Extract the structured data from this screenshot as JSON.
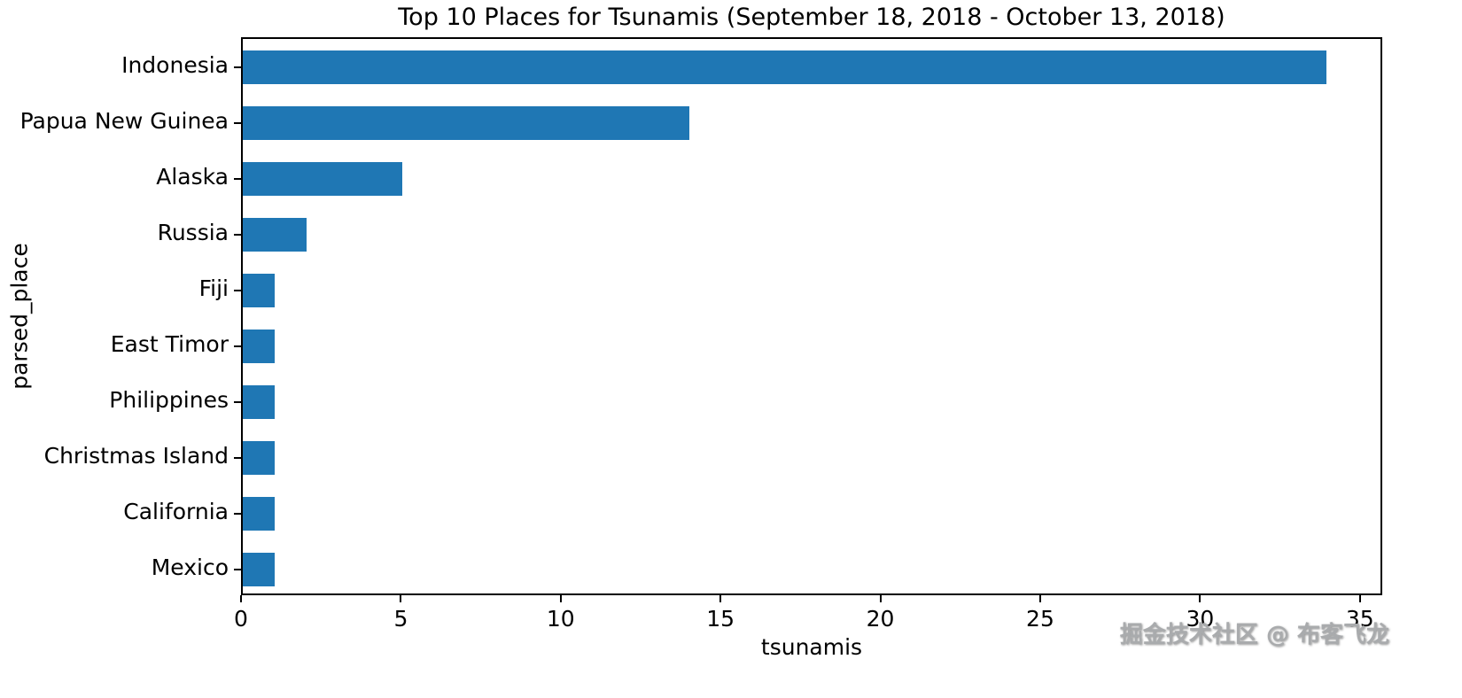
{
  "chart_data": {
    "type": "bar",
    "orientation": "horizontal",
    "title": "Top 10 Places for Tsunamis (September 18, 2018 - October 13, 2018)",
    "xlabel": "tsunamis",
    "ylabel": "parsed_place",
    "categories": [
      "Indonesia",
      "Papua New Guinea",
      "Alaska",
      "Russia",
      "Fiji",
      "East Timor",
      "Philippines",
      "Christmas Island",
      "California",
      "Mexico"
    ],
    "values": [
      34,
      14,
      5,
      2,
      1,
      1,
      1,
      1,
      1,
      1
    ],
    "xlim": [
      0,
      35.7
    ],
    "xticks": [
      0,
      5,
      10,
      15,
      20,
      25,
      30,
      35
    ],
    "bar_color": "#1f77b4",
    "grid": false,
    "legend": false
  },
  "watermark": "掘金技术社区 @ 布客飞龙"
}
